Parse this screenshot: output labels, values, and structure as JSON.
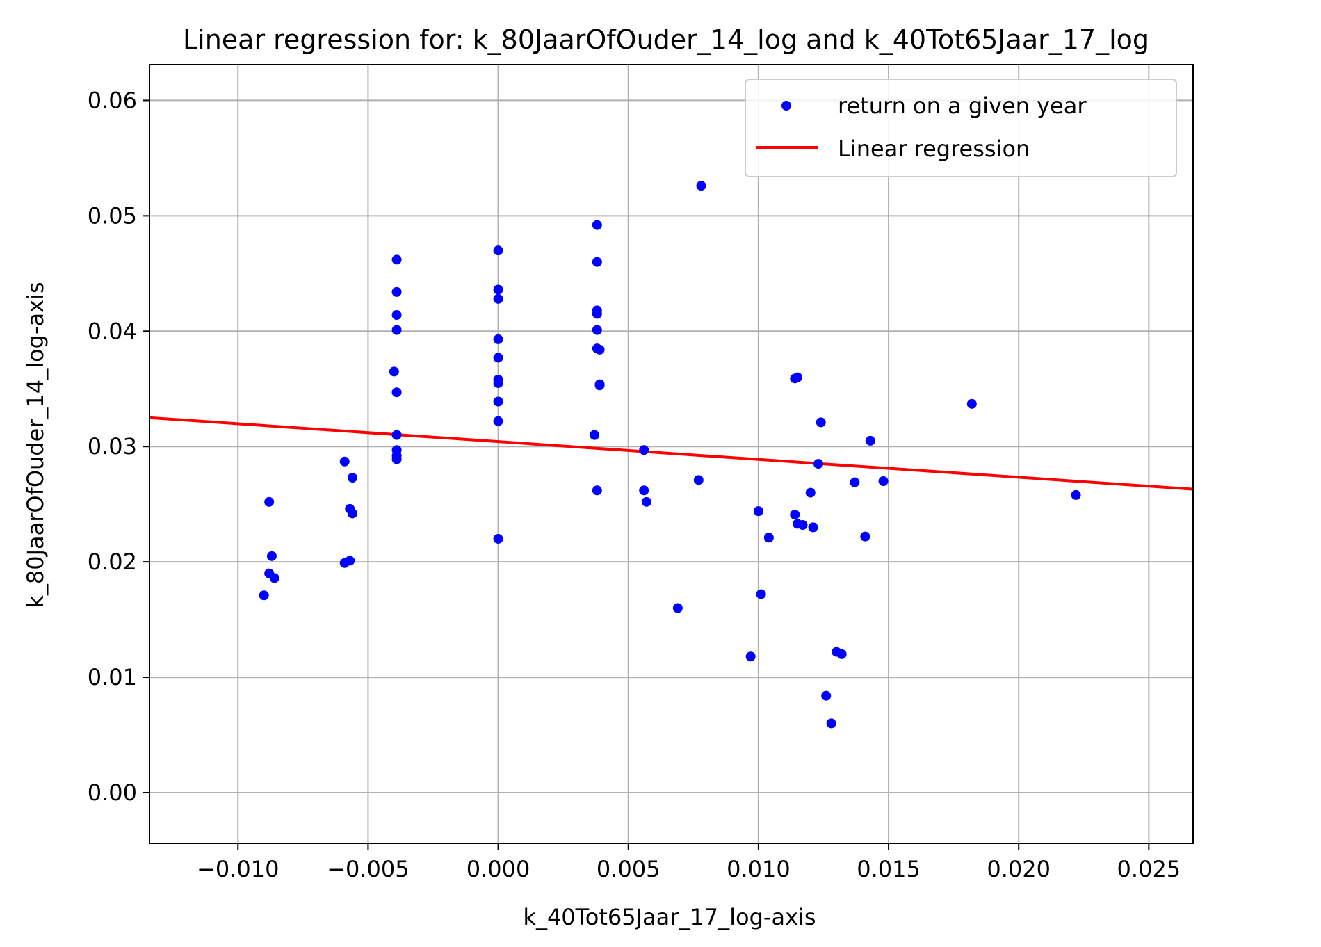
{
  "chart_data": {
    "type": "scatter",
    "title": "Linear regression for: k_80JaarOfOuder_14_log and k_40Tot65Jaar_17_log",
    "xlabel": "k_40Tot65Jaar_17_log-axis",
    "ylabel": "k_80JaarOfOuder_14_log-axis",
    "xlim": [
      -0.0134,
      0.0267
    ],
    "ylim": [
      -0.0044,
      0.0631
    ],
    "grid": true,
    "legend_position": "top-right",
    "x_ticks": [
      -0.01,
      -0.005,
      0.0,
      0.005,
      0.01,
      0.015,
      0.02,
      0.025
    ],
    "x_tick_labels": [
      "−0.010",
      "−0.005",
      "0.000",
      "0.005",
      "0.010",
      "0.015",
      "0.020",
      "0.025"
    ],
    "y_ticks": [
      0.0,
      0.01,
      0.02,
      0.03,
      0.04,
      0.05,
      0.06
    ],
    "y_tick_labels": [
      "0.00",
      "0.01",
      "0.02",
      "0.03",
      "0.04",
      "0.05",
      "0.06"
    ],
    "series": [
      {
        "name": "return on a given year",
        "kind": "scatter",
        "color": "#0000ff",
        "points": [
          [
            -0.0088,
            0.0252
          ],
          [
            -0.0087,
            0.0205
          ],
          [
            -0.0088,
            0.019
          ],
          [
            -0.0086,
            0.0186
          ],
          [
            -0.009,
            0.0171
          ],
          [
            -0.0059,
            0.0287
          ],
          [
            -0.0056,
            0.0273
          ],
          [
            -0.0057,
            0.0246
          ],
          [
            -0.0056,
            0.0242
          ],
          [
            -0.0059,
            0.0199
          ],
          [
            -0.0057,
            0.0201
          ],
          [
            -0.0039,
            0.0462
          ],
          [
            -0.0039,
            0.0434
          ],
          [
            -0.0039,
            0.0414
          ],
          [
            -0.0039,
            0.0401
          ],
          [
            -0.004,
            0.0365
          ],
          [
            -0.0039,
            0.0347
          ],
          [
            -0.0039,
            0.031
          ],
          [
            -0.0039,
            0.0297
          ],
          [
            -0.0039,
            0.0292
          ],
          [
            -0.0039,
            0.0289
          ],
          [
            0.0,
            0.047
          ],
          [
            0.0,
            0.0436
          ],
          [
            0.0,
            0.0428
          ],
          [
            0.0,
            0.0393
          ],
          [
            0.0,
            0.0377
          ],
          [
            0.0,
            0.0358
          ],
          [
            0.0,
            0.0355
          ],
          [
            0.0,
            0.0339
          ],
          [
            0.0,
            0.0322
          ],
          [
            0.0,
            0.022
          ],
          [
            0.0038,
            0.0492
          ],
          [
            0.0038,
            0.046
          ],
          [
            0.0038,
            0.0418
          ],
          [
            0.0038,
            0.0415
          ],
          [
            0.0038,
            0.0401
          ],
          [
            0.0038,
            0.0385
          ],
          [
            0.0039,
            0.0384
          ],
          [
            0.0039,
            0.0354
          ],
          [
            0.0039,
            0.0353
          ],
          [
            0.0037,
            0.031
          ],
          [
            0.0038,
            0.0262
          ],
          [
            0.0056,
            0.0297
          ],
          [
            0.0056,
            0.0262
          ],
          [
            0.0057,
            0.0252
          ],
          [
            0.0069,
            0.016
          ],
          [
            0.0078,
            0.0526
          ],
          [
            0.0077,
            0.0271
          ],
          [
            0.0097,
            0.0118
          ],
          [
            0.01,
            0.0244
          ],
          [
            0.0101,
            0.0172
          ],
          [
            0.0104,
            0.0221
          ],
          [
            0.0114,
            0.0359
          ],
          [
            0.0115,
            0.036
          ],
          [
            0.0114,
            0.0241
          ],
          [
            0.0115,
            0.0233
          ],
          [
            0.0117,
            0.0232
          ],
          [
            0.0121,
            0.023
          ],
          [
            0.012,
            0.026
          ],
          [
            0.0123,
            0.0285
          ],
          [
            0.0124,
            0.0321
          ],
          [
            0.0126,
            0.0084
          ],
          [
            0.0128,
            0.006
          ],
          [
            0.013,
            0.0122
          ],
          [
            0.0132,
            0.012
          ],
          [
            0.0137,
            0.0269
          ],
          [
            0.0141,
            0.0222
          ],
          [
            0.0143,
            0.0305
          ],
          [
            0.0148,
            0.027
          ],
          [
            0.0182,
            0.0337
          ],
          [
            0.0222,
            0.0258
          ]
        ]
      },
      {
        "name": "Linear regression",
        "kind": "line",
        "color": "#ff0000",
        "points": [
          [
            -0.0134,
            0.0325
          ],
          [
            0.0267,
            0.0263
          ]
        ]
      }
    ]
  }
}
